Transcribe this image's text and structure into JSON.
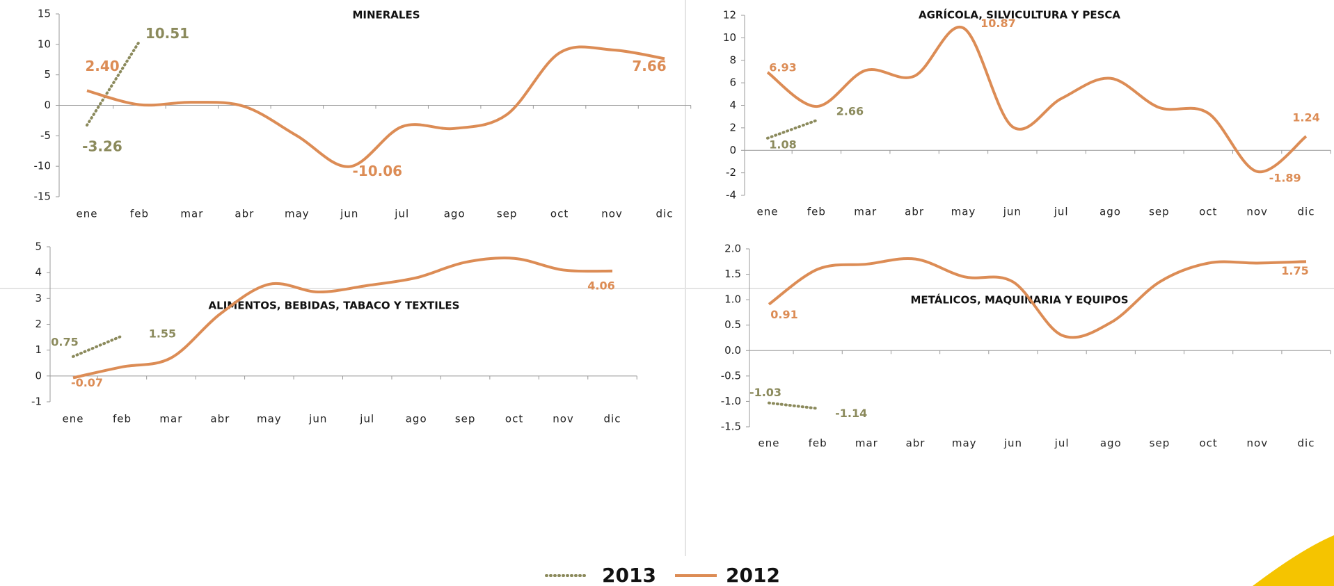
{
  "legend": [
    {
      "name": "2013",
      "color": "#8b8a5c",
      "style": "dotted"
    },
    {
      "name": "2012",
      "color": "#dc8c55",
      "style": "solid"
    }
  ],
  "chart_data": [
    {
      "type": "line",
      "title": "MINERALES",
      "categories": [
        "ene",
        "feb",
        "mar",
        "abr",
        "may",
        "jun",
        "jul",
        "ago",
        "sep",
        "oct",
        "nov",
        "dic"
      ],
      "ylim": [
        -15,
        15
      ],
      "yticks": [
        -15,
        -10,
        -5,
        0,
        5,
        10,
        15
      ],
      "series": [
        {
          "color": "#8b8a5c",
          "style": "dotted",
          "values": [
            -3.26,
            10.51,
            null,
            null,
            null,
            null,
            null,
            null,
            null,
            null,
            null,
            null
          ],
          "value_labels": [
            "-3.26",
            "10.51",
            null,
            null,
            null,
            null,
            null,
            null,
            null,
            null,
            null,
            null
          ]
        },
        {
          "color": "#dc8c55",
          "style": "solid",
          "values": [
            2.4,
            0.1,
            0.5,
            -0.2,
            -5,
            -10.06,
            -3.5,
            -3.8,
            -1.5,
            8.6,
            9.1,
            7.66
          ],
          "value_labels": [
            "2.40",
            null,
            null,
            null,
            null,
            "-10.06",
            null,
            null,
            null,
            null,
            null,
            "7.66"
          ]
        }
      ]
    },
    {
      "type": "line",
      "title": "AGRÍCOLA, SILVICULTURA Y PESCA",
      "categories": [
        "ene",
        "feb",
        "mar",
        "abr",
        "may",
        "jun",
        "jul",
        "ago",
        "sep",
        "oct",
        "nov",
        "dic"
      ],
      "ylim": [
        -4,
        12
      ],
      "yticks": [
        -4,
        -2,
        0,
        2,
        4,
        6,
        8,
        10,
        12
      ],
      "series": [
        {
          "color": "#8b8a5c",
          "style": "dotted",
          "values": [
            1.08,
            2.66,
            null,
            null,
            null,
            null,
            null,
            null,
            null,
            null,
            null,
            null
          ],
          "value_labels": [
            "1.08",
            "2.66",
            null,
            null,
            null,
            null,
            null,
            null,
            null,
            null,
            null,
            null
          ]
        },
        {
          "color": "#dc8c55",
          "style": "solid",
          "values": [
            6.93,
            3.9,
            7.1,
            6.6,
            10.87,
            2.1,
            4.6,
            6.4,
            3.8,
            3.3,
            -1.89,
            1.24
          ],
          "value_labels": [
            "6.93",
            null,
            null,
            null,
            "10.87",
            null,
            null,
            null,
            null,
            null,
            "-1.89",
            "1.24"
          ]
        }
      ]
    },
    {
      "type": "line",
      "title": "ALIMENTOS, BEBIDAS, TABACO Y TEXTILES",
      "categories": [
        "ene",
        "feb",
        "mar",
        "abr",
        "may",
        "jun",
        "jul",
        "ago",
        "sep",
        "oct",
        "nov",
        "dic"
      ],
      "ylim": [
        -1,
        5
      ],
      "yticks": [
        -1,
        0,
        1,
        2,
        3,
        4,
        5
      ],
      "series": [
        {
          "color": "#8b8a5c",
          "style": "dotted",
          "values": [
            0.75,
            1.55,
            null,
            null,
            null,
            null,
            null,
            null,
            null,
            null,
            null,
            null
          ],
          "value_labels": [
            "0.75",
            "1.55",
            null,
            null,
            null,
            null,
            null,
            null,
            null,
            null,
            null,
            null
          ]
        },
        {
          "color": "#dc8c55",
          "style": "solid",
          "values": [
            -0.07,
            0.35,
            0.7,
            2.4,
            3.55,
            3.25,
            3.5,
            3.8,
            4.4,
            4.55,
            4.1,
            4.06
          ],
          "value_labels": [
            "-0.07",
            null,
            null,
            null,
            null,
            null,
            null,
            null,
            null,
            null,
            null,
            "4.06"
          ]
        }
      ]
    },
    {
      "type": "line",
      "title": "METÁLICOS, MAQUINARIA Y EQUIPOS",
      "categories": [
        "ene",
        "feb",
        "mar",
        "abr",
        "may",
        "jun",
        "jul",
        "ago",
        "sep",
        "oct",
        "nov",
        "dic"
      ],
      "ylim": [
        -1.5,
        2
      ],
      "yticks": [
        {
          "value": -1.5,
          "label": "-1.5"
        },
        {
          "value": -1,
          "label": "-1.0"
        },
        {
          "value": -0.5,
          "label": "-0.5"
        },
        {
          "value": 0,
          "label": "0.0"
        },
        {
          "value": 0.5,
          "label": "0.5"
        },
        {
          "value": 1,
          "label": "1.0"
        },
        {
          "value": 1.5,
          "label": "1.5"
        },
        {
          "value": 2,
          "label": "2.0"
        }
      ],
      "series": [
        {
          "color": "#8b8a5c",
          "style": "dotted",
          "values": [
            -1.03,
            -1.14,
            null,
            null,
            null,
            null,
            null,
            null,
            null,
            null,
            null,
            null
          ],
          "value_labels": [
            "-1.03",
            "-1.14",
            null,
            null,
            null,
            null,
            null,
            null,
            null,
            null,
            null,
            null
          ]
        },
        {
          "color": "#dc8c55",
          "style": "solid",
          "values": [
            0.91,
            1.6,
            1.7,
            1.8,
            1.45,
            1.35,
            0.3,
            0.55,
            1.35,
            1.72,
            1.72,
            1.75
          ],
          "value_labels": [
            "0.91",
            null,
            null,
            null,
            null,
            null,
            null,
            null,
            null,
            null,
            null,
            "1.75"
          ]
        }
      ]
    }
  ]
}
